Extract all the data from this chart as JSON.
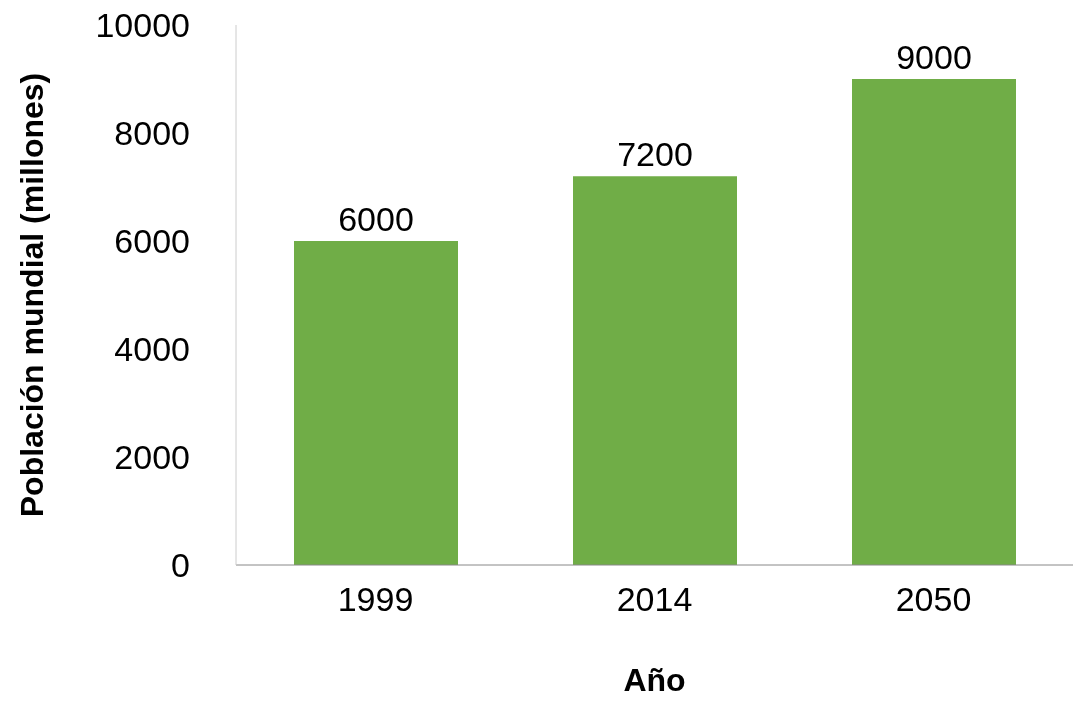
{
  "chart_data": {
    "type": "bar",
    "xlabel": "Año",
    "ylabel": "Población mundial (millones)",
    "categories": [
      "1999",
      "2014",
      "2050"
    ],
    "values": [
      6000,
      7200,
      9000
    ],
    "color": "#70ad47",
    "ylim": [
      0,
      10000
    ],
    "yticks": [
      0,
      2000,
      4000,
      6000,
      8000,
      10000
    ],
    "grid": false,
    "data_labels": true
  }
}
